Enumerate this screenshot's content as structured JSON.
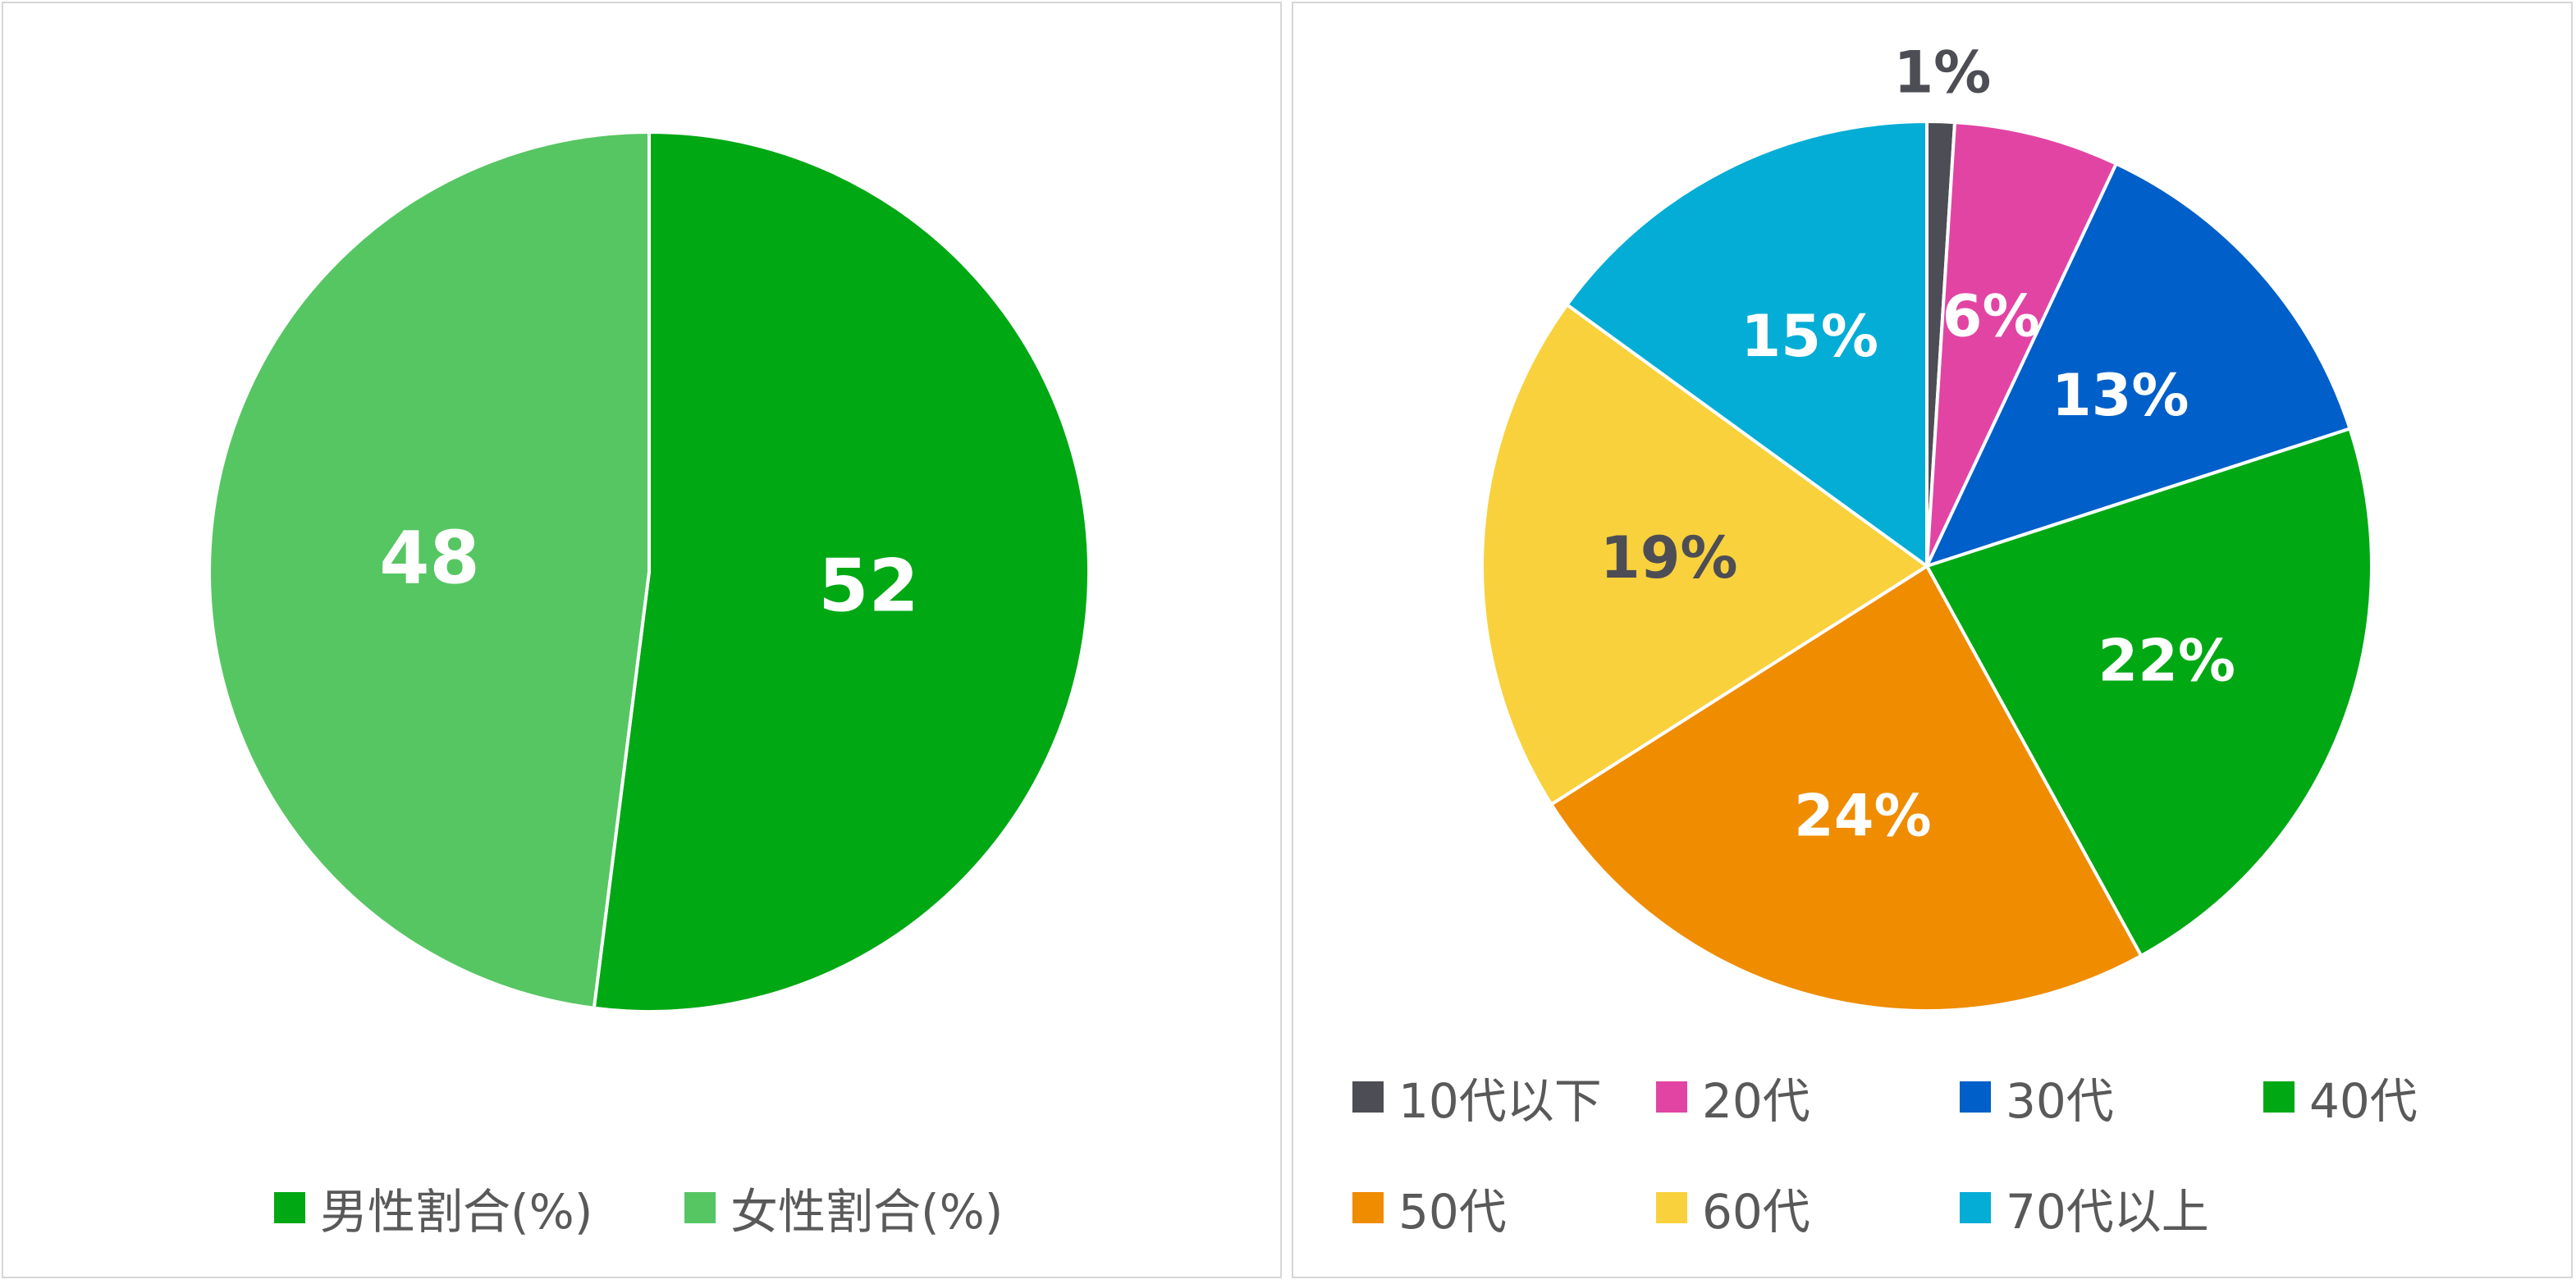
{
  "chart_data": [
    {
      "type": "pie",
      "title": "",
      "series": [
        {
          "name": "男性割合(%)",
          "value": 52,
          "label": "52",
          "color": "#00A814",
          "label_color": "#FFFFFF"
        },
        {
          "name": "女性割合(%)",
          "value": 48,
          "label": "48",
          "color": "#56C663",
          "label_color": "#FFFFFF"
        }
      ],
      "legend_position": "bottom"
    },
    {
      "type": "pie",
      "title": "",
      "series": [
        {
          "name": "10代以下",
          "value": 1,
          "label": "1%",
          "color": "#4D4D55",
          "label_color": "#4D4D55"
        },
        {
          "name": "20代",
          "value": 6,
          "label": "6%",
          "color": "#E244A4",
          "label_color": "#FFFFFF"
        },
        {
          "name": "30代",
          "value": 13,
          "label": "13%",
          "color": "#005FC8",
          "label_color": "#FFFFFF"
        },
        {
          "name": "40代",
          "value": 22,
          "label": "22%",
          "color": "#00A814",
          "label_color": "#FFFFFF"
        },
        {
          "name": "50代",
          "value": 24,
          "label": "24%",
          "color": "#EF8C00",
          "label_color": "#FFFFFF"
        },
        {
          "name": "60代",
          "value": 19,
          "label": "19%",
          "color": "#F8D13C",
          "label_color": "#4D4D55"
        },
        {
          "name": "70代以上",
          "value": 15,
          "label": "15%",
          "color": "#03ADD6",
          "label_color": "#FFFFFF"
        }
      ],
      "legend_position": "bottom"
    }
  ]
}
